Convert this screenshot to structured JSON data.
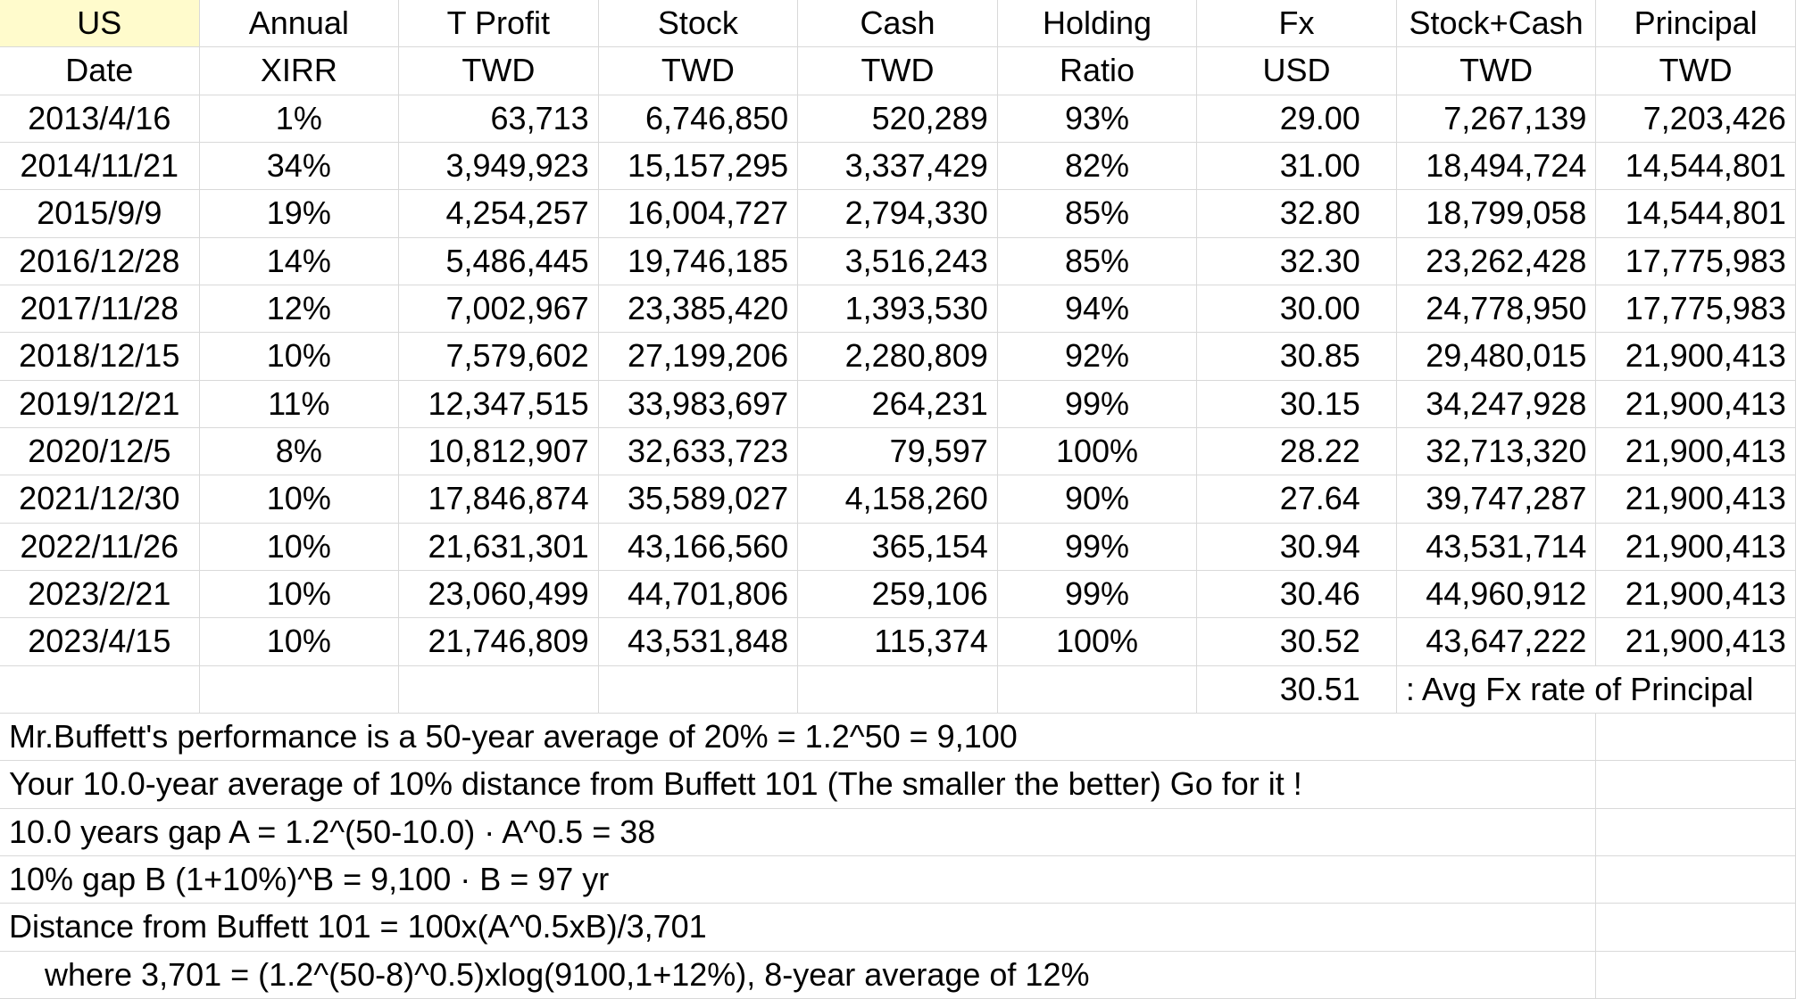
{
  "header": {
    "rows": [
      [
        "US",
        "Annual",
        "T Profit",
        "Stock",
        "Cash",
        "Holding",
        "Fx",
        "Stock+Cash",
        "Principal"
      ],
      [
        "Date",
        "XIRR",
        "TWD",
        "TWD",
        "TWD",
        "Ratio",
        "USD",
        "TWD",
        "TWD"
      ]
    ]
  },
  "table": {
    "rows": [
      [
        "2013/4/16",
        "1%",
        "63,713",
        "6,746,850",
        "520,289",
        "93%",
        "29.00",
        "7,267,139",
        "7,203,426"
      ],
      [
        "2014/11/21",
        "34%",
        "3,949,923",
        "15,157,295",
        "3,337,429",
        "82%",
        "31.00",
        "18,494,724",
        "14,544,801"
      ],
      [
        "2015/9/9",
        "19%",
        "4,254,257",
        "16,004,727",
        "2,794,330",
        "85%",
        "32.80",
        "18,799,058",
        "14,544,801"
      ],
      [
        "2016/12/28",
        "14%",
        "5,486,445",
        "19,746,185",
        "3,516,243",
        "85%",
        "32.30",
        "23,262,428",
        "17,775,983"
      ],
      [
        "2017/11/28",
        "12%",
        "7,002,967",
        "23,385,420",
        "1,393,530",
        "94%",
        "30.00",
        "24,778,950",
        "17,775,983"
      ],
      [
        "2018/12/15",
        "10%",
        "7,579,602",
        "27,199,206",
        "2,280,809",
        "92%",
        "30.85",
        "29,480,015",
        "21,900,413"
      ],
      [
        "2019/12/21",
        "11%",
        "12,347,515",
        "33,983,697",
        "264,231",
        "99%",
        "30.15",
        "34,247,928",
        "21,900,413"
      ],
      [
        "2020/12/5",
        "8%",
        "10,812,907",
        "32,633,723",
        "79,597",
        "100%",
        "28.22",
        "32,713,320",
        "21,900,413"
      ],
      [
        "2021/12/30",
        "10%",
        "17,846,874",
        "35,589,027",
        "4,158,260",
        "90%",
        "27.64",
        "39,747,287",
        "21,900,413"
      ],
      [
        "2022/11/26",
        "10%",
        "21,631,301",
        "43,166,560",
        "365,154",
        "99%",
        "30.94",
        "43,531,714",
        "21,900,413"
      ],
      [
        "2023/2/21",
        "10%",
        "23,060,499",
        "44,701,806",
        "259,106",
        "99%",
        "30.46",
        "44,960,912",
        "21,900,413"
      ],
      [
        "2023/4/15",
        "10%",
        "21,746,809",
        "43,531,848",
        "115,374",
        "100%",
        "30.52",
        "43,647,222",
        "21,900,413"
      ]
    ]
  },
  "avg_fx": {
    "value": "30.51",
    "label": ": Avg Fx rate of Principal"
  },
  "notes": [
    "Mr.Buffett's performance is a 50-year average of 20% = 1.2^50 = 9,100",
    "Your 10.0-year average of 10% distance from Buffett 101 (The smaller the better) Go for it !",
    "10.0 years gap A = 1.2^(50-10.0) · A^0.5 = 38",
    "10% gap B (1+10%)^B = 9,100 · B = 97 yr",
    "Distance from Buffett 101 = 100x(A^0.5xB)/3,701",
    "where 3,701 = (1.2^(50-8)^0.5)xlog(9100,1+12%), 8-year average of 12%"
  ]
}
